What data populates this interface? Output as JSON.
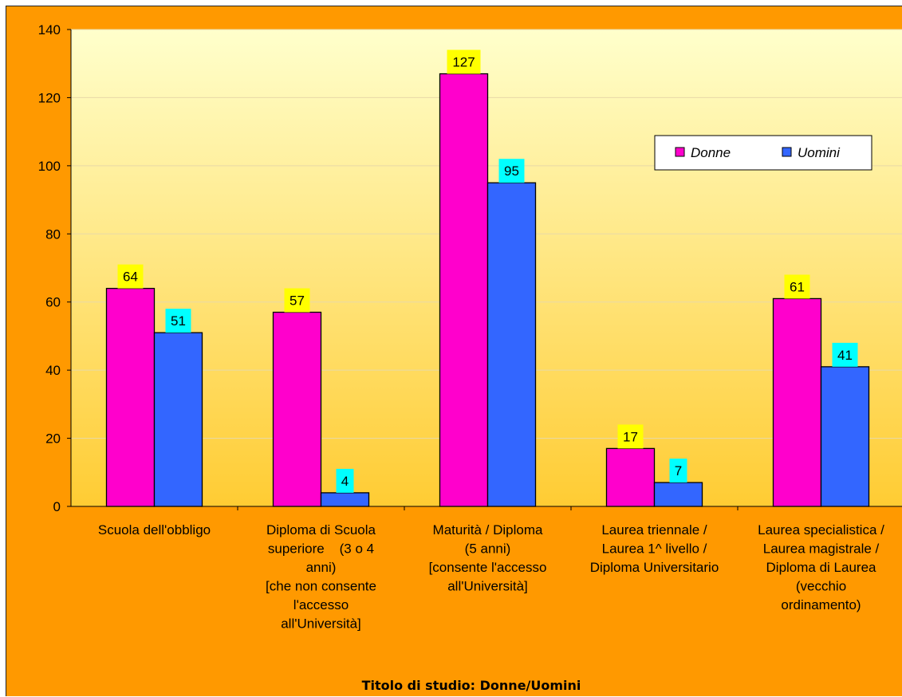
{
  "chart_data": {
    "type": "bar",
    "title": "Titolo di studio: Donne/Uomini",
    "categories": [
      [
        "Scuola dell'obbligo"
      ],
      [
        "Diploma di Scuola",
        "superiore    (3 o 4",
        "anni)",
        "[che non consente",
        "l'accesso",
        "all'Università]"
      ],
      [
        "Maturità / Diploma",
        "(5 anni)",
        "[consente l'accesso",
        "all'Università]"
      ],
      [
        "Laurea triennale /",
        "Laurea 1^ livello /",
        "Diploma Universitario"
      ],
      [
        "Laurea specialistica /",
        "Laurea magistrale /",
        "Diploma di Laurea",
        "(vecchio",
        "ordinamento)"
      ]
    ],
    "series": [
      {
        "name": "Donne",
        "values": [
          64,
          57,
          127,
          17,
          61
        ],
        "color": "#ff00cc",
        "label_bg": "#ffff00"
      },
      {
        "name": "Uomini",
        "values": [
          51,
          4,
          95,
          7,
          41
        ],
        "color": "#3366ff",
        "label_bg": "#00ffff"
      }
    ],
    "ylim": [
      0,
      140
    ],
    "yticks": [
      0,
      20,
      40,
      60,
      80,
      100,
      120,
      140
    ],
    "legend_position": "top-right",
    "grid": true,
    "plot_bg_gradient": [
      "#ffffcc",
      "#ffcc33"
    ]
  }
}
